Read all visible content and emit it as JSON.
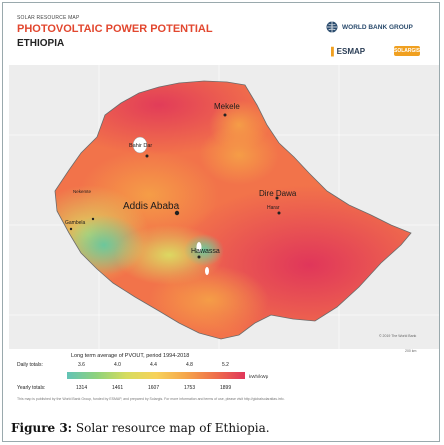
{
  "header": {
    "overline": "SOLAR RESOURCE MAP",
    "title": "PHOTOVOLTAIC POWER POTENTIAL",
    "country": "ETHIOPIA"
  },
  "logos": {
    "world_bank": "WORLD BANK GROUP",
    "esmap": "ESMAP",
    "solargis": "SOLARGIS"
  },
  "map": {
    "cities": [
      "Mekele",
      "Bahir Dar",
      "Dire Dawa",
      "Harar",
      "Addis Ababa",
      "Nekemte",
      "Gambela",
      "Hawassa"
    ],
    "capital": "Addis Ababa",
    "copyright": "© 2019 The World Bank",
    "scale": "200 km",
    "colors": {
      "highest": "#e0365a",
      "high": "#f2734a",
      "mid": "#f7a94c",
      "low": "#dcd862",
      "lowest": "#6cc79c"
    }
  },
  "legend": {
    "title": "Long term average of PVOUT, period 1994-2018",
    "daily_label": "Daily totals:",
    "yearly_label": "Yearly totals:",
    "daily_values": [
      "3.6",
      "4.0",
      "4.4",
      "4.8",
      "5.2"
    ],
    "yearly_values": [
      "1314",
      "1461",
      "1607",
      "1753",
      "1899"
    ],
    "unit": "kWh/kWp",
    "gradient": [
      "#62c3b6",
      "#8fd27c",
      "#d6dc5e",
      "#f7d25a",
      "#f5a64b",
      "#ef6f4a",
      "#e0365a"
    ],
    "footnote": "This map is published by the World Bank Group, funded by ESMAP, and prepared by Solargis. For more information and terms of use, please visit http://globalsolaratlas.info."
  },
  "caption": {
    "label": "Figure 3:",
    "text": " Solar resource map of Ethiopia."
  }
}
